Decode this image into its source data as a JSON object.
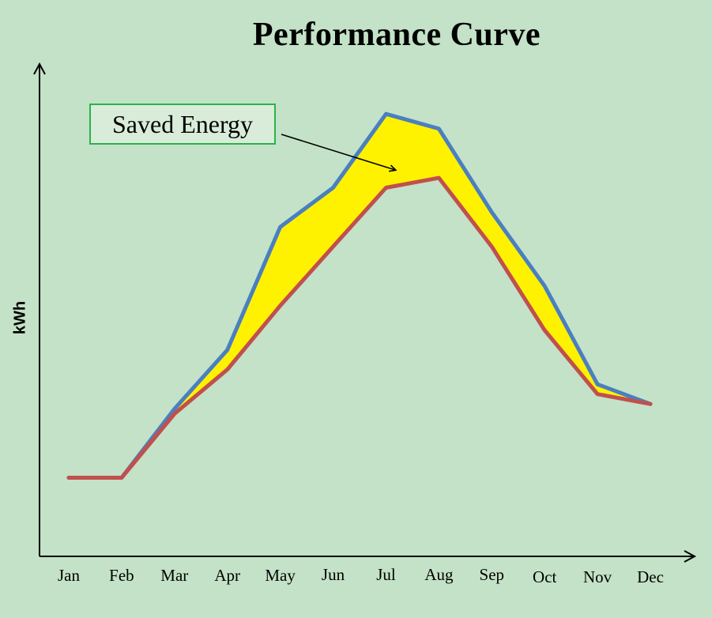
{
  "chart_data": {
    "type": "line",
    "title": "Performance Curve",
    "xlabel": "",
    "ylabel": "kWh",
    "categories": [
      "Jan",
      "Feb",
      "Mar",
      "Apr",
      "May",
      "Jun",
      "Jul",
      "Aug",
      "Sep",
      "Oct",
      "Nov",
      "Dec"
    ],
    "ylim": [
      0,
      100
    ],
    "series": [
      {
        "color": "#4a7fc0",
        "values": [
          16,
          16,
          30,
          42,
          67,
          75,
          90,
          87,
          70,
          55,
          35,
          31
        ]
      },
      {
        "color": "#c0504d",
        "values": [
          16,
          16,
          29,
          38,
          51,
          63,
          75,
          77,
          63,
          46,
          33,
          31
        ]
      }
    ],
    "fill_between": {
      "color": "#fff200"
    },
    "annotations": [
      {
        "text": "Saved Energy"
      }
    ],
    "grid": false,
    "legend": "none"
  }
}
